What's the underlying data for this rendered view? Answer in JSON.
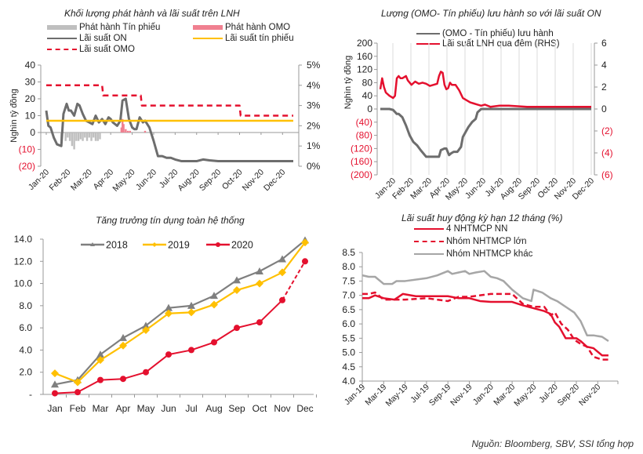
{
  "source_note": "Nguồn:  Bloomberg, SBV, SSI tổng hợp",
  "colors": {
    "grey": "#6d6d6d",
    "light_grey": "#a6a6a6",
    "red": "#e4102e",
    "yellow": "#ffc000",
    "pink": "#f08090",
    "neg_red": "#e4102e"
  },
  "chart_data": [
    {
      "type": "line",
      "title": "Khối lượng phát hành và lãi suất trên LNH",
      "ylabel": "Nghìn tỷ đồng",
      "ylim": [
        -20,
        40
      ],
      "y2lim": [
        0,
        5
      ],
      "yticks": [
        "40",
        "30",
        "20",
        "10",
        "0",
        "(10)",
        "(20)"
      ],
      "y2ticks": [
        "5%",
        "4%",
        "3%",
        "2%",
        "1%",
        "0%"
      ],
      "xticks": [
        "Jan-20",
        "Feb-20",
        "Mar-20",
        "Apr-20",
        "May-20",
        "Jun-20",
        "Jul-20",
        "Aug-20",
        "Sep-20",
        "Oct-20",
        "Nov-20",
        "Dec-20"
      ],
      "legend": [
        {
          "name": "Phát hành  Tín phiếu",
          "style": "bar",
          "color": "#bfbfbf"
        },
        {
          "name": "Phát hành OMO",
          "style": "bar",
          "color": "#f08090"
        },
        {
          "name": "Lãi suất ON",
          "style": "line",
          "color": "#6d6d6d"
        },
        {
          "name": "Lãi suất tín phiếu",
          "style": "line",
          "color": "#ffc000"
        },
        {
          "name": "Lãi suất OMO",
          "style": "dash",
          "color": "#e4102e"
        }
      ],
      "series": [
        {
          "name": "Lãi suất ON",
          "axis": "left",
          "x": [
            0,
            0.1,
            0.2,
            0.35,
            0.5,
            0.7,
            0.8,
            0.95,
            1.05,
            1.15,
            1.3,
            1.45,
            1.55,
            1.7,
            1.85,
            2.0,
            2.15,
            2.3,
            2.45,
            2.6,
            2.75,
            2.9,
            3.0,
            3.1,
            3.2,
            3.3,
            3.45,
            3.55,
            3.7,
            3.85,
            4.0,
            4.1,
            4.2,
            4.35,
            4.5,
            4.6,
            4.8,
            5.0,
            5.2,
            5.4,
            5.6,
            5.8,
            6.0,
            6.3,
            6.6,
            7.0,
            7.3,
            7.6,
            8.0,
            8.5,
            9.0,
            9.5,
            10.0,
            10.5,
            11.0,
            11.5
          ],
          "values": [
            13,
            4,
            3,
            -3,
            -7,
            -8,
            11,
            17,
            13,
            13,
            10,
            17,
            16,
            11,
            7,
            6,
            5,
            10,
            6,
            8,
            5,
            9,
            8,
            6,
            5,
            4,
            7,
            19,
            20,
            8,
            3,
            2,
            2,
            9,
            6,
            7,
            3,
            -5,
            -14,
            -14,
            -15,
            -15,
            -16,
            -17,
            -17,
            -17,
            -16,
            -16.5,
            -17,
            -17,
            -17,
            -17,
            -17,
            -17,
            -17,
            -17
          ]
        },
        {
          "name": "Lãi suất tín phiếu",
          "axis": "right",
          "x": [
            0,
            11.5
          ],
          "values": [
            2.25,
            2.25
          ]
        },
        {
          "name": "Lãi suất OMO",
          "axis": "right",
          "x": [
            0,
            2.6,
            2.65,
            4.4,
            4.45,
            9.0,
            9.05,
            11.5
          ],
          "values": [
            4.0,
            4.0,
            3.5,
            3.5,
            3.0,
            3.0,
            2.5,
            2.5
          ]
        },
        {
          "name": "Phát hành  Tín phiếu",
          "axis": "left",
          "type": "bar",
          "x": [
            0.7,
            0.9,
            1.0,
            1.1,
            1.2,
            1.3,
            1.4,
            1.5,
            1.6,
            1.7,
            1.8,
            1.9,
            2.0,
            2.1,
            2.2,
            2.3,
            2.4,
            2.5
          ],
          "values": [
            -5,
            -5,
            -3,
            -5,
            -8,
            -10,
            -5,
            -5,
            -4,
            -5,
            -3,
            -5,
            -3,
            -5,
            -3,
            -5,
            -5,
            -4
          ]
        },
        {
          "name": "Phát hành OMO",
          "axis": "left",
          "type": "bar",
          "x": [
            3.5,
            3.55,
            3.6,
            3.7,
            3.8,
            3.9,
            4.6
          ],
          "values": [
            3,
            8,
            5,
            2,
            1,
            1,
            1
          ]
        }
      ]
    },
    {
      "type": "line",
      "title": "Lượng (OMO- Tín phiếu) lưu hành so với lãi suất ON",
      "ylabel": "Nghìn tỷ đồng",
      "ylim": [
        -200,
        200
      ],
      "y2lim": [
        -6,
        6
      ],
      "yticks": [
        "200",
        "160",
        "120",
        "80",
        "40",
        "0",
        "(40)",
        "(80)",
        "(120)",
        "(160)",
        "(200)"
      ],
      "y2ticks": [
        "6",
        "4",
        "2",
        "0",
        "(2)",
        "(4)",
        "(6)"
      ],
      "xticks": [
        "Jan-20",
        "Feb-20",
        "Mar-20",
        "Apr-20",
        "May-20",
        "Jun-20",
        "Jul-20",
        "Aug-20",
        "Sep-20",
        "Oct-20",
        "Nov-20",
        "Dec-20"
      ],
      "grid": "vertical",
      "legend": [
        {
          "name": "(OMO - Tín  phiếu)  lưu hành",
          "style": "line",
          "color": "#6d6d6d"
        },
        {
          "name": "Lãi suất LNH  qua  đêm (RHS)",
          "style": "line",
          "color": "#e4102e"
        }
      ],
      "series": [
        {
          "name": "(OMO - Tín  phiếu)  lưu hành",
          "axis": "left",
          "x": [
            0,
            0.5,
            0.7,
            0.9,
            1.0,
            1.2,
            1.4,
            1.6,
            1.8,
            2.0,
            2.2,
            2.5,
            2.8,
            3.0,
            3.2,
            3.3,
            3.5,
            3.6,
            3.75,
            3.85,
            4.0,
            4.2,
            4.4,
            4.5,
            4.6,
            4.8,
            5.0,
            5.2,
            5.3,
            5.5,
            6.0,
            11.5
          ],
          "values": [
            0,
            0,
            -3,
            -15,
            -15,
            -25,
            -50,
            -80,
            -100,
            -110,
            -125,
            -145,
            -145,
            -145,
            -145,
            -125,
            -120,
            -120,
            -140,
            -135,
            -130,
            -130,
            -115,
            -85,
            -75,
            -55,
            -40,
            -30,
            -10,
            0,
            0,
            0
          ]
        },
        {
          "name": "Lãi suất LNH  qua  đêm (RHS)",
          "axis": "right",
          "x": [
            0,
            0.1,
            0.2,
            0.3,
            0.5,
            0.7,
            0.8,
            0.9,
            1.0,
            1.1,
            1.2,
            1.4,
            1.5,
            1.7,
            1.9,
            2.1,
            2.3,
            2.5,
            2.7,
            2.9,
            3.1,
            3.2,
            3.3,
            3.4,
            3.5,
            3.6,
            3.7,
            3.8,
            3.9,
            4.1,
            4.3,
            4.5,
            4.7,
            4.9,
            5.1,
            5.3,
            5.5,
            5.7,
            6.0,
            6.5,
            7.0,
            7.5,
            8.0,
            9.0,
            10.0,
            11.5
          ],
          "values": [
            1.8,
            2.8,
            2.0,
            1.5,
            1.2,
            1.0,
            1.2,
            2.8,
            3.0,
            2.8,
            2.8,
            3.0,
            2.6,
            2.2,
            2.5,
            2.3,
            2.4,
            2.3,
            2.1,
            2.2,
            2.3,
            3.0,
            3.4,
            3.3,
            2.2,
            1.8,
            1.9,
            2.4,
            2.2,
            2.2,
            1.7,
            1.0,
            0.8,
            0.6,
            0.5,
            0.4,
            0.3,
            0.4,
            0.2,
            0.3,
            0.3,
            0.25,
            0.2,
            0.2,
            0.2,
            0.2
          ]
        }
      ]
    },
    {
      "type": "line",
      "title": "Tăng trưởng tín dụng toàn hệ thống",
      "categories": [
        "Jan",
        "Feb",
        "Mar",
        "Apr",
        "May",
        "Jun",
        "Jul",
        "Aug",
        "Sep",
        "Oct",
        "Nov",
        "Dec"
      ],
      "ylim": [
        0,
        14
      ],
      "yticks": [
        "14.0",
        "12.0",
        "10.0",
        "8.0",
        "6.0",
        "4.0",
        "2.0",
        "-"
      ],
      "legend_position": "top",
      "series": [
        {
          "name": "2018",
          "color": "#7f7f7f",
          "marker": "triangle",
          "values": [
            0.9,
            1.3,
            3.6,
            5.1,
            6.2,
            7.8,
            8.0,
            8.9,
            10.3,
            11.1,
            12.2,
            13.9
          ]
        },
        {
          "name": "2019",
          "color": "#ffc000",
          "marker": "diamond",
          "values": [
            1.9,
            1.1,
            3.1,
            4.4,
            5.8,
            7.3,
            7.4,
            8.1,
            9.4,
            10.0,
            11.0,
            13.7
          ]
        },
        {
          "name": "2020",
          "color": "#e4102e",
          "marker": "circle",
          "values": [
            0.1,
            0.2,
            1.3,
            1.4,
            2.0,
            3.6,
            4.0,
            4.7,
            6.0,
            6.5,
            8.5,
            12.0
          ],
          "dashed_last_segment": true
        }
      ]
    },
    {
      "type": "line",
      "title": "Lãi suất huy động kỳ hạn 12 tháng (%)",
      "ylim": [
        4.0,
        8.5
      ],
      "yticks": [
        "8.5",
        "8.0",
        "7.5",
        "7.0",
        "6.5",
        "6.0",
        "5.5",
        "5.0",
        "4.5",
        "4.0"
      ],
      "xticks": [
        "Jan-19",
        "Mar-19",
        "May-19",
        "Jul-19",
        "Sep-19",
        "Nov-19",
        "Jan-20",
        "Mar-20",
        "May-20",
        "Jul-20",
        "Sep-20",
        "Nov-20"
      ],
      "legend": [
        {
          "name": "4 NHTMCP NN",
          "style": "line",
          "color": "#e4102e"
        },
        {
          "name": "Nhóm NHTMCP lớn",
          "style": "dash",
          "color": "#e4102e"
        },
        {
          "name": "Nhóm NHTMCP khác",
          "style": "line",
          "color": "#a6a6a6"
        }
      ],
      "series": [
        {
          "name": "4 NHTMCP NN",
          "x": [
            0,
            0.3,
            0.6,
            1.0,
            1.5,
            1.9,
            2.5,
            3.0,
            4.0,
            4.5,
            5.0,
            5.5,
            6.0,
            7.0,
            7.5,
            8.0,
            8.5,
            8.8,
            9.0,
            9.2,
            9.5,
            9.8,
            10.0,
            10.2,
            10.5,
            10.8,
            11.2,
            11.5
          ],
          "values": [
            6.9,
            6.9,
            7.0,
            6.9,
            6.85,
            7.05,
            6.97,
            6.97,
            6.97,
            6.9,
            6.9,
            6.8,
            6.77,
            6.77,
            6.65,
            6.55,
            6.45,
            6.35,
            6.05,
            5.9,
            5.5,
            5.5,
            5.5,
            5.4,
            5.2,
            5.15,
            4.9,
            4.9
          ]
        },
        {
          "name": "Nhóm NHTMCP lớn",
          "x": [
            0,
            0.3,
            0.6,
            1.0,
            1.5,
            2.0,
            3.0,
            4.0,
            4.5,
            5.0,
            5.5,
            6.0,
            7.0,
            7.5,
            8.0,
            8.5,
            8.8,
            9.0,
            9.3,
            9.6,
            9.9,
            10.2,
            10.5,
            10.8,
            11.2,
            11.5
          ],
          "values": [
            7.05,
            7.05,
            7.1,
            6.85,
            6.85,
            6.85,
            6.9,
            6.8,
            6.95,
            6.95,
            7.0,
            7.05,
            7.05,
            6.7,
            6.6,
            6.6,
            6.3,
            6.4,
            6.0,
            5.8,
            5.45,
            5.3,
            5.2,
            4.85,
            4.75,
            4.75
          ]
        },
        {
          "name": "Nhóm NHTMCP khác",
          "x": [
            0,
            0.3,
            0.6,
            1.0,
            1.4,
            1.6,
            2.0,
            3.0,
            3.5,
            4.0,
            4.2,
            4.5,
            4.8,
            5.0,
            5.3,
            5.7,
            6.0,
            6.3,
            6.6,
            7.0,
            7.5,
            7.9,
            8.0,
            8.4,
            8.8,
            9.1,
            9.5,
            9.9,
            10.2,
            10.5,
            10.8,
            11.2,
            11.5
          ],
          "values": [
            7.7,
            7.65,
            7.65,
            7.4,
            7.4,
            7.5,
            7.5,
            7.6,
            7.7,
            7.85,
            7.75,
            7.8,
            7.85,
            7.75,
            7.8,
            7.85,
            7.65,
            7.6,
            7.5,
            7.2,
            6.9,
            6.8,
            7.2,
            7.1,
            6.9,
            6.8,
            6.6,
            6.4,
            6.1,
            5.6,
            5.6,
            5.55,
            5.4
          ]
        }
      ]
    }
  ]
}
